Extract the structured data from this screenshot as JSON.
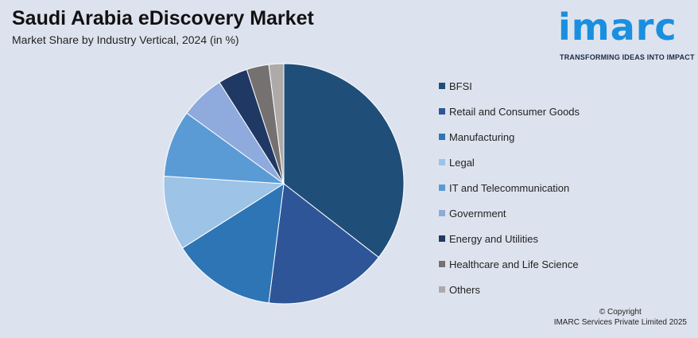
{
  "header": {
    "title": "Saudi Arabia eDiscovery Market",
    "subtitle": "Market Share by Industry Vertical, 2024 (in %)"
  },
  "logo": {
    "word": "imarc",
    "tagline": "TRANSFORMING IDEAS INTO IMPACT"
  },
  "chart_data": {
    "type": "pie",
    "title": "Saudi Arabia eDiscovery Market",
    "subtitle": "Market Share by Industry Vertical, 2024 (in %)",
    "legend_position": "right",
    "slices": [
      {
        "label": "BFSI",
        "value": 35.5,
        "color": "#1f4e79"
      },
      {
        "label": "Retail and Consumer Goods",
        "value": 16.5,
        "color": "#2e5597"
      },
      {
        "label": "Manufacturing",
        "value": 14.0,
        "color": "#2e75b6"
      },
      {
        "label": "Legal",
        "value": 10.0,
        "color": "#9dc3e6"
      },
      {
        "label": "IT and Telecommunication",
        "value": 9.0,
        "color": "#5b9bd5"
      },
      {
        "label": "Government",
        "value": 6.0,
        "color": "#8faadc"
      },
      {
        "label": "Energy and Utilities",
        "value": 4.0,
        "color": "#203864"
      },
      {
        "label": "Healthcare and Life Science",
        "value": 3.0,
        "color": "#767171"
      },
      {
        "label": "Others",
        "value": 2.0,
        "color": "#aeaaaa"
      }
    ]
  },
  "footer": {
    "copyright_line1": "© Copyright",
    "copyright_line2": "IMARC Services Private Limited 2025"
  }
}
